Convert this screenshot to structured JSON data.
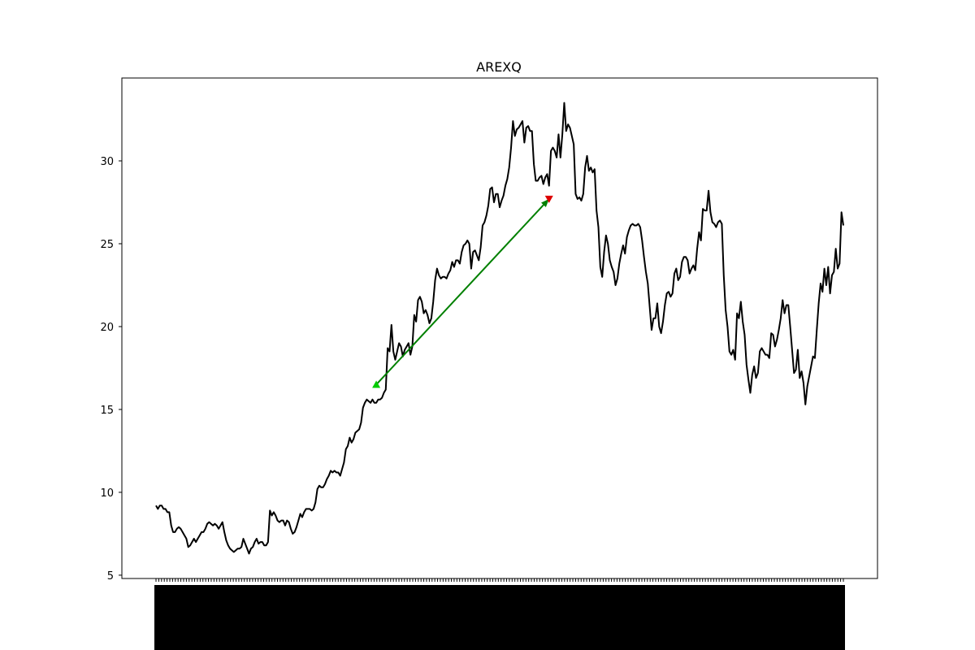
{
  "chart_data": {
    "type": "line",
    "title": "AREXQ",
    "xlabel": "",
    "ylabel": "",
    "ylim": [
      4.8,
      35.0
    ],
    "yticks": [
      5,
      10,
      15,
      20,
      25,
      30
    ],
    "x_tick_count": 250,
    "grid": false,
    "series": [
      {
        "color": "#000000",
        "values": [
          9.2,
          9.0,
          9.2,
          9.2,
          9.0,
          9.0,
          8.8,
          8.8,
          8.0,
          7.6,
          7.6,
          7.8,
          7.9,
          7.8,
          7.6,
          7.4,
          7.2,
          6.7,
          6.8,
          7.0,
          7.2,
          7.0,
          7.2,
          7.4,
          7.6,
          7.6,
          7.8,
          8.1,
          8.2,
          8.1,
          8.0,
          8.1,
          8.0,
          7.8,
          8.0,
          8.2,
          7.6,
          7.1,
          6.8,
          6.6,
          6.5,
          6.4,
          6.5,
          6.6,
          6.6,
          6.7,
          7.2,
          6.9,
          6.6,
          6.3,
          6.6,
          6.7,
          7.0,
          7.2,
          6.9,
          7.0,
          7.0,
          6.8,
          6.8,
          7.0,
          8.9,
          8.6,
          8.8,
          8.6,
          8.3,
          8.2,
          8.3,
          8.3,
          8.0,
          8.3,
          8.2,
          7.8,
          7.5,
          7.6,
          7.9,
          8.3,
          8.7,
          8.5,
          8.8,
          9.0,
          9.0,
          9.0,
          8.9,
          9.0,
          9.4,
          10.2,
          10.4,
          10.3,
          10.3,
          10.5,
          10.8,
          11.0,
          11.3,
          11.2,
          11.3,
          11.2,
          11.2,
          11.0,
          11.4,
          11.8,
          12.6,
          12.8,
          13.3,
          13.0,
          13.2,
          13.6,
          13.7,
          13.8,
          14.2,
          15.1,
          15.4,
          15.6,
          15.5,
          15.4,
          15.6,
          15.4,
          15.4,
          15.6,
          15.6,
          15.7,
          16.0,
          16.2,
          18.7,
          18.5,
          20.1,
          18.5,
          18.0,
          18.5,
          19.0,
          18.8,
          18.2,
          18.6,
          18.8,
          19.0,
          18.3,
          18.8,
          20.7,
          20.3,
          21.6,
          21.8,
          21.5,
          20.8,
          21.0,
          20.7,
          20.2,
          20.5,
          21.5,
          22.8,
          23.5,
          23.1,
          22.9,
          23.0,
          23.0,
          22.9,
          23.2,
          23.4,
          23.9,
          23.6,
          24.0,
          24.0,
          23.8,
          24.5,
          24.9,
          25.0,
          25.2,
          25.0,
          23.5,
          24.5,
          24.6,
          24.3,
          24.0,
          24.8,
          26.1,
          26.3,
          26.7,
          27.3,
          28.3,
          28.4,
          27.5,
          28.0,
          28.0,
          27.2,
          27.6,
          27.9,
          28.5,
          28.9,
          29.6,
          30.8,
          32.4,
          31.5,
          31.9,
          32.0,
          32.2,
          32.4,
          31.1,
          32.0,
          32.1,
          31.8,
          31.8,
          29.8,
          28.8,
          28.8,
          29.0,
          29.1,
          28.6,
          29.0,
          29.2,
          28.5,
          30.6,
          30.8,
          30.6,
          30.2,
          31.6,
          30.2,
          31.6,
          33.5,
          31.8,
          32.2,
          32.0,
          31.5,
          31.0,
          28.0,
          27.7,
          27.8,
          27.6,
          28.0,
          29.6,
          30.3,
          29.4,
          29.6,
          29.3,
          29.5,
          27.0,
          26.0,
          23.6,
          23.0,
          24.5,
          25.5,
          25.0,
          24.0,
          23.6,
          23.3,
          22.5,
          22.9,
          23.8,
          24.4,
          24.9,
          24.4,
          25.4,
          25.8,
          26.1,
          26.2,
          26.1,
          26.1,
          26.2,
          26.0,
          25.2,
          24.2,
          23.3,
          22.6,
          21.2,
          19.8,
          20.5,
          20.5,
          21.4,
          20.0,
          19.6,
          20.3,
          21.3,
          22.0,
          22.1,
          21.8,
          22.0,
          23.2,
          23.5,
          22.8,
          23.0,
          23.9,
          24.2,
          24.2,
          24.0,
          23.2,
          23.5,
          23.7,
          23.4,
          24.7,
          25.7,
          25.2,
          27.1,
          27.0,
          27.0,
          28.2,
          26.9,
          26.3,
          26.2,
          26.0,
          26.3,
          26.4,
          26.2,
          23.1,
          21.0,
          20.0,
          18.5,
          18.3,
          18.6,
          18.0,
          20.8,
          20.5,
          21.5,
          20.3,
          19.5,
          17.7,
          16.8,
          16.0,
          17.1,
          17.6,
          16.9,
          17.2,
          18.5,
          18.7,
          18.5,
          18.3,
          18.3,
          18.1,
          19.6,
          19.5,
          18.8,
          19.2,
          19.8,
          20.5,
          21.6,
          20.8,
          21.3,
          21.3,
          20.0,
          18.6,
          17.2,
          17.4,
          18.6,
          16.9,
          17.3,
          16.6,
          15.3,
          16.4,
          17.0,
          17.6,
          18.2,
          18.1,
          19.8,
          21.4,
          22.6,
          22.1,
          23.5,
          22.5,
          23.6,
          22.0,
          23.1,
          23.3,
          24.7,
          23.5,
          23.8,
          26.9,
          26.1
        ]
      }
    ],
    "annotations": [
      {
        "type": "arrow",
        "color": "#008000",
        "from": {
          "index": 116,
          "y": 16.5
        },
        "to": {
          "index": 207,
          "y": 27.7
        },
        "start_marker": {
          "shape": "triangle-up",
          "color": "#00cc00"
        },
        "end_marker": {
          "shape": "triangle-down",
          "color": "#dd0000"
        }
      }
    ]
  }
}
